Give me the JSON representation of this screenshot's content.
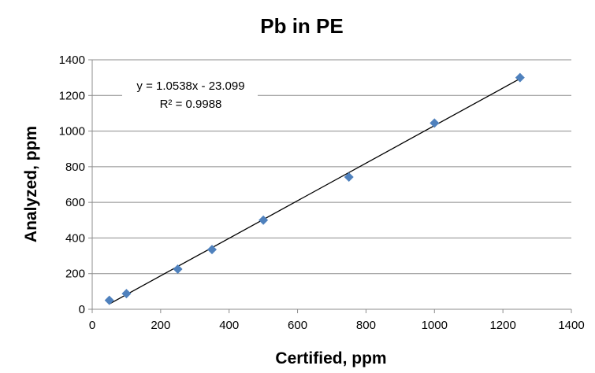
{
  "chart_data": {
    "type": "scatter",
    "title": "Pb in PE",
    "xlabel": "Certified, ppm",
    "ylabel": "Analyzed, ppm",
    "xlim": [
      0,
      1400
    ],
    "ylim": [
      0,
      1400
    ],
    "xticks": [
      0,
      200,
      400,
      600,
      800,
      1000,
      1200,
      1400
    ],
    "yticks": [
      0,
      200,
      400,
      600,
      800,
      1000,
      1200,
      1400
    ],
    "grid": "horizontal",
    "marker_color": "#4f81bd",
    "trendline_color": "#000000",
    "series": [
      {
        "x": [
          50,
          100,
          250,
          350,
          500,
          750,
          1000,
          1250
        ],
        "y": [
          50,
          88,
          225,
          335,
          500,
          742,
          1045,
          1300
        ]
      }
    ],
    "trendline": {
      "slope": 1.0538,
      "intercept": -23.099,
      "x_range": [
        50,
        1250
      ],
      "equation_label": "y = 1.0538x - 23.099",
      "r2_label": "R² = 0.9988"
    }
  }
}
